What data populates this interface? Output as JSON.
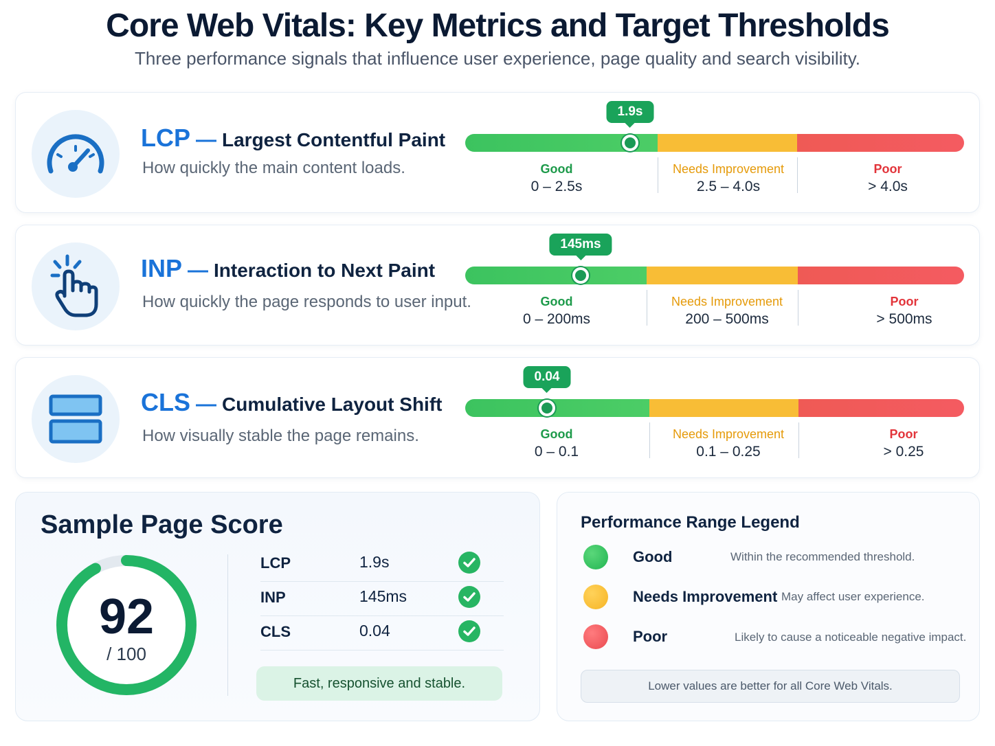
{
  "title": "Core Web Vitals: Key Metrics and Target Thresholds",
  "subtitle": "Three performance signals that influence user experience, page quality and search visibility.",
  "metrics": [
    {
      "abbr": "LCP",
      "dash": "—",
      "name": "Largest Contentful Paint",
      "description": "How quickly the main content loads.",
      "value_label": "1.9s",
      "value": 1.9,
      "ranges": [
        {
          "label": "Good",
          "range": "0 – 2.5s"
        },
        {
          "label": "Needs Improvement",
          "range": "2.5 – 4.0s"
        },
        {
          "label": "Poor",
          "range": "> 4.0s"
        }
      ]
    },
    {
      "abbr": "INP",
      "dash": "—",
      "name": "Interaction to Next Paint",
      "description": "How quickly the page responds to user input.",
      "value_label": "145ms",
      "value": 145,
      "ranges": [
        {
          "label": "Good",
          "range": "0 – 200ms"
        },
        {
          "label": "Needs Improvement",
          "range": "200 – 500ms"
        },
        {
          "label": "Poor",
          "range": "> 500ms"
        }
      ]
    },
    {
      "abbr": "CLS",
      "dash": "—",
      "name": "Cumulative Layout Shift",
      "description": "How visually stable the page remains.",
      "value_label": "0.04",
      "value": 0.04,
      "ranges": [
        {
          "label": "Good",
          "range": "0 – 0.1"
        },
        {
          "label": "Needs Improvement",
          "range": "0.1 – 0.25"
        },
        {
          "label": "Poor",
          "range": "> 0.25"
        }
      ]
    }
  ],
  "score": {
    "title": "Sample Page Score",
    "value": "92",
    "denominator": "/ 100",
    "rows": [
      {
        "metric": "LCP",
        "value": "1.9s"
      },
      {
        "metric": "INP",
        "value": "145ms"
      },
      {
        "metric": "CLS",
        "value": "0.04"
      }
    ],
    "summary": "Fast, responsive and stable."
  },
  "legend": {
    "title": "Performance Range Legend",
    "items": [
      {
        "label": "Good",
        "description": "Within the recommended threshold."
      },
      {
        "label": "Needs Improvement",
        "description": "May affect user experience."
      },
      {
        "label": "Poor",
        "description": "Likely to cause a noticeable negative impact."
      }
    ],
    "note": "Lower values are better for all Core Web Vitals."
  },
  "colors": {
    "good": "#3cc35f",
    "needs_improvement": "#f8bd36",
    "poor": "#ef5a55",
    "accent": "#1a73d9",
    "marker": "#1aa35a"
  }
}
